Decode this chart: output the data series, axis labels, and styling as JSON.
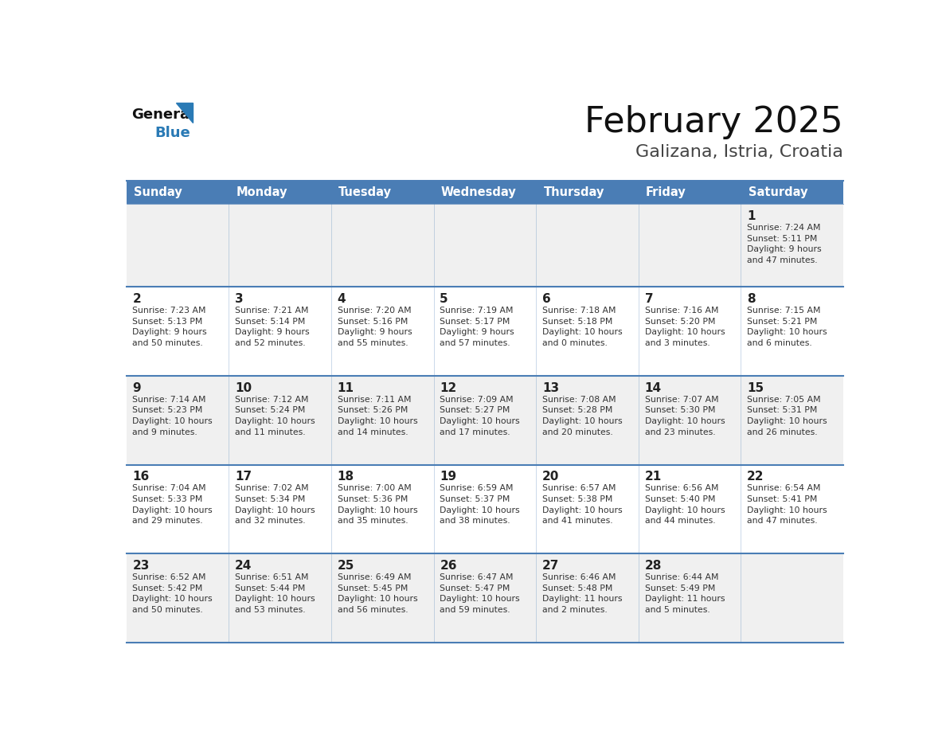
{
  "title": "February 2025",
  "subtitle": "Galizana, Istria, Croatia",
  "days_of_week": [
    "Sunday",
    "Monday",
    "Tuesday",
    "Wednesday",
    "Thursday",
    "Friday",
    "Saturday"
  ],
  "header_bg": "#4a7db5",
  "header_text_color": "#ffffff",
  "cell_bg_row0": "#f0f0f0",
  "cell_bg_odd": "#ffffff",
  "cell_bg_even": "#f0f0f0",
  "border_color": "#4a7db5",
  "day_number_color": "#222222",
  "info_text_color": "#333333",
  "title_color": "#111111",
  "subtitle_color": "#444444",
  "logo_general_color": "#111111",
  "logo_blue_color": "#2a7ab5",
  "calendar": [
    {
      "day": 1,
      "col": 6,
      "row": 0,
      "sunrise": "7:24 AM",
      "sunset": "5:11 PM",
      "daylight_h": "9 hours",
      "daylight_m": "47 minutes."
    },
    {
      "day": 2,
      "col": 0,
      "row": 1,
      "sunrise": "7:23 AM",
      "sunset": "5:13 PM",
      "daylight_h": "9 hours",
      "daylight_m": "50 minutes."
    },
    {
      "day": 3,
      "col": 1,
      "row": 1,
      "sunrise": "7:21 AM",
      "sunset": "5:14 PM",
      "daylight_h": "9 hours",
      "daylight_m": "52 minutes."
    },
    {
      "day": 4,
      "col": 2,
      "row": 1,
      "sunrise": "7:20 AM",
      "sunset": "5:16 PM",
      "daylight_h": "9 hours",
      "daylight_m": "55 minutes."
    },
    {
      "day": 5,
      "col": 3,
      "row": 1,
      "sunrise": "7:19 AM",
      "sunset": "5:17 PM",
      "daylight_h": "9 hours",
      "daylight_m": "57 minutes."
    },
    {
      "day": 6,
      "col": 4,
      "row": 1,
      "sunrise": "7:18 AM",
      "sunset": "5:18 PM",
      "daylight_h": "10 hours",
      "daylight_m": "0 minutes."
    },
    {
      "day": 7,
      "col": 5,
      "row": 1,
      "sunrise": "7:16 AM",
      "sunset": "5:20 PM",
      "daylight_h": "10 hours",
      "daylight_m": "3 minutes."
    },
    {
      "day": 8,
      "col": 6,
      "row": 1,
      "sunrise": "7:15 AM",
      "sunset": "5:21 PM",
      "daylight_h": "10 hours",
      "daylight_m": "6 minutes."
    },
    {
      "day": 9,
      "col": 0,
      "row": 2,
      "sunrise": "7:14 AM",
      "sunset": "5:23 PM",
      "daylight_h": "10 hours",
      "daylight_m": "9 minutes."
    },
    {
      "day": 10,
      "col": 1,
      "row": 2,
      "sunrise": "7:12 AM",
      "sunset": "5:24 PM",
      "daylight_h": "10 hours",
      "daylight_m": "11 minutes."
    },
    {
      "day": 11,
      "col": 2,
      "row": 2,
      "sunrise": "7:11 AM",
      "sunset": "5:26 PM",
      "daylight_h": "10 hours",
      "daylight_m": "14 minutes."
    },
    {
      "day": 12,
      "col": 3,
      "row": 2,
      "sunrise": "7:09 AM",
      "sunset": "5:27 PM",
      "daylight_h": "10 hours",
      "daylight_m": "17 minutes."
    },
    {
      "day": 13,
      "col": 4,
      "row": 2,
      "sunrise": "7:08 AM",
      "sunset": "5:28 PM",
      "daylight_h": "10 hours",
      "daylight_m": "20 minutes."
    },
    {
      "day": 14,
      "col": 5,
      "row": 2,
      "sunrise": "7:07 AM",
      "sunset": "5:30 PM",
      "daylight_h": "10 hours",
      "daylight_m": "23 minutes."
    },
    {
      "day": 15,
      "col": 6,
      "row": 2,
      "sunrise": "7:05 AM",
      "sunset": "5:31 PM",
      "daylight_h": "10 hours",
      "daylight_m": "26 minutes."
    },
    {
      "day": 16,
      "col": 0,
      "row": 3,
      "sunrise": "7:04 AM",
      "sunset": "5:33 PM",
      "daylight_h": "10 hours",
      "daylight_m": "29 minutes."
    },
    {
      "day": 17,
      "col": 1,
      "row": 3,
      "sunrise": "7:02 AM",
      "sunset": "5:34 PM",
      "daylight_h": "10 hours",
      "daylight_m": "32 minutes."
    },
    {
      "day": 18,
      "col": 2,
      "row": 3,
      "sunrise": "7:00 AM",
      "sunset": "5:36 PM",
      "daylight_h": "10 hours",
      "daylight_m": "35 minutes."
    },
    {
      "day": 19,
      "col": 3,
      "row": 3,
      "sunrise": "6:59 AM",
      "sunset": "5:37 PM",
      "daylight_h": "10 hours",
      "daylight_m": "38 minutes."
    },
    {
      "day": 20,
      "col": 4,
      "row": 3,
      "sunrise": "6:57 AM",
      "sunset": "5:38 PM",
      "daylight_h": "10 hours",
      "daylight_m": "41 minutes."
    },
    {
      "day": 21,
      "col": 5,
      "row": 3,
      "sunrise": "6:56 AM",
      "sunset": "5:40 PM",
      "daylight_h": "10 hours",
      "daylight_m": "44 minutes."
    },
    {
      "day": 22,
      "col": 6,
      "row": 3,
      "sunrise": "6:54 AM",
      "sunset": "5:41 PM",
      "daylight_h": "10 hours",
      "daylight_m": "47 minutes."
    },
    {
      "day": 23,
      "col": 0,
      "row": 4,
      "sunrise": "6:52 AM",
      "sunset": "5:42 PM",
      "daylight_h": "10 hours",
      "daylight_m": "50 minutes."
    },
    {
      "day": 24,
      "col": 1,
      "row": 4,
      "sunrise": "6:51 AM",
      "sunset": "5:44 PM",
      "daylight_h": "10 hours",
      "daylight_m": "53 minutes."
    },
    {
      "day": 25,
      "col": 2,
      "row": 4,
      "sunrise": "6:49 AM",
      "sunset": "5:45 PM",
      "daylight_h": "10 hours",
      "daylight_m": "56 minutes."
    },
    {
      "day": 26,
      "col": 3,
      "row": 4,
      "sunrise": "6:47 AM",
      "sunset": "5:47 PM",
      "daylight_h": "10 hours",
      "daylight_m": "59 minutes."
    },
    {
      "day": 27,
      "col": 4,
      "row": 4,
      "sunrise": "6:46 AM",
      "sunset": "5:48 PM",
      "daylight_h": "11 hours",
      "daylight_m": "2 minutes."
    },
    {
      "day": 28,
      "col": 5,
      "row": 4,
      "sunrise": "6:44 AM",
      "sunset": "5:49 PM",
      "daylight_h": "11 hours",
      "daylight_m": "5 minutes."
    }
  ]
}
